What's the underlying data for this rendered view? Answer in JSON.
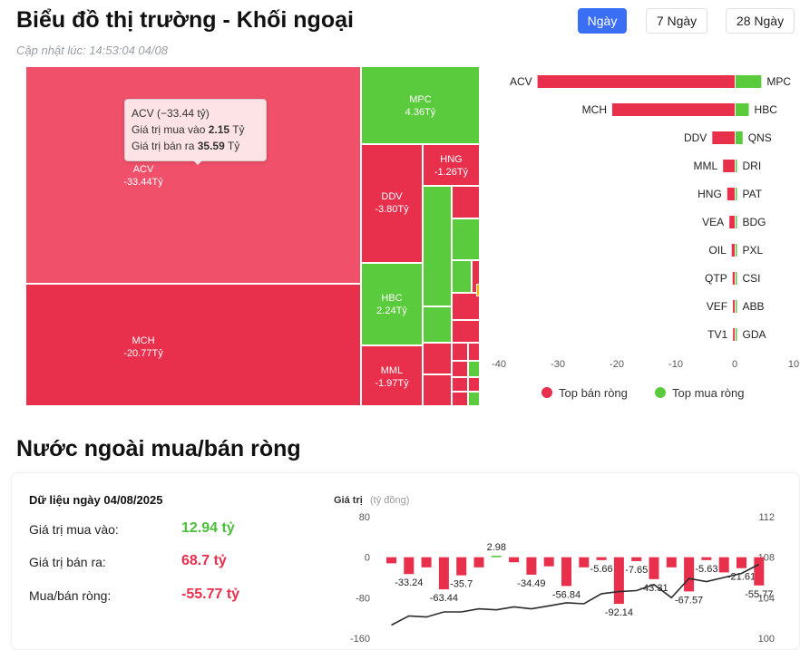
{
  "header": {
    "title": "Biểu đồ thị trường - Khối ngoại",
    "updated": "Cập nhật lúc: 14:53:04 04/08",
    "tabs": [
      {
        "label": "Ngày",
        "active": true
      },
      {
        "label": "7 Ngày",
        "active": false
      },
      {
        "label": "28 Ngày",
        "active": false
      }
    ]
  },
  "colors": {
    "sell": "#e8304d",
    "sell_light": "#f0506a",
    "buy": "#5bcb3e",
    "accent": "#3a6ff5"
  },
  "treemap": {
    "tiles": [
      {
        "name": "ACV",
        "value": "-33.44Tỷ",
        "side": "sell"
      },
      {
        "name": "MCH",
        "value": "-20.77Tỷ",
        "side": "sell"
      },
      {
        "name": "MPC",
        "value": "4.36Tỷ",
        "side": "buy"
      },
      {
        "name": "DDV",
        "value": "-3.80Tỷ",
        "side": "sell"
      },
      {
        "name": "HNG",
        "value": "-1.26Tỷ",
        "side": "sell"
      },
      {
        "name": "HBC",
        "value": "2.24Tỷ",
        "side": "buy"
      },
      {
        "name": "MML",
        "value": "-1.97Tỷ",
        "side": "sell"
      }
    ],
    "tooltip": {
      "title": "ACV (−33.44 tỷ)",
      "buy_label": "Giá trị mua vào",
      "buy_value": "2.15",
      "buy_unit": "Tỷ",
      "sell_label": "Giá trị bán ra",
      "sell_value": "35.59",
      "sell_unit": "Tỷ"
    }
  },
  "bar_chart": {
    "rows": [
      {
        "sell_code": "ACV",
        "sell": -33.44,
        "buy_code": "MPC",
        "buy": 4.36
      },
      {
        "sell_code": "MCH",
        "sell": -20.77,
        "buy_code": "HBC",
        "buy": 2.24
      },
      {
        "sell_code": "DDV",
        "sell": -3.8,
        "buy_code": "QNS",
        "buy": 1.2
      },
      {
        "sell_code": "MML",
        "sell": -1.97,
        "buy_code": "DRI",
        "buy": 0.2
      },
      {
        "sell_code": "HNG",
        "sell": -1.26,
        "buy_code": "PAT",
        "buy": 0.15
      },
      {
        "sell_code": "VEA",
        "sell": -0.9,
        "buy_code": "BDG",
        "buy": 0.1
      },
      {
        "sell_code": "OIL",
        "sell": -0.5,
        "buy_code": "PXL",
        "buy": 0.08
      },
      {
        "sell_code": "QTP",
        "sell": -0.35,
        "buy_code": "CSI",
        "buy": 0.06
      },
      {
        "sell_code": "VEF",
        "sell": -0.3,
        "buy_code": "ABB",
        "buy": 0.05
      },
      {
        "sell_code": "TV1",
        "sell": -0.28,
        "buy_code": "GDA",
        "buy": 0.05
      }
    ],
    "ticks": [
      -40,
      -30,
      -20,
      -10,
      0,
      10
    ],
    "legend_sell": "Top bán ròng",
    "legend_buy": "Top mua ròng"
  },
  "net_section": {
    "title": "Nước ngoài mua/bán ròng",
    "date_label": "Dữ liệu ngày 04/08/2025",
    "buy_label": "Giá trị mua vào:",
    "buy_value": "12.94 tỷ",
    "sell_label": "Giá trị bán ra:",
    "sell_value": "68.7 tỷ",
    "net_label": "Mua/bán ròng:",
    "net_value": "-55.77 tỷ"
  },
  "chart_data": {
    "type": "bar",
    "ylabel": "Giá trị",
    "ylabel_unit": "(tỷ đồng)",
    "ylim": [
      -160,
      80
    ],
    "yticks": [
      80,
      0,
      -80,
      -160
    ],
    "y2lim": [
      100,
      112
    ],
    "y2ticks": [
      112,
      108,
      104,
      100
    ],
    "series": [
      {
        "values": [
          -12,
          -33.24,
          -20,
          -63.44,
          -35.7,
          -20,
          2.98,
          -10,
          -34.49,
          -18,
          -56.84,
          -20,
          -5.66,
          -92.14,
          -7.65,
          -43.31,
          -20,
          -67.57,
          -5.63,
          -30,
          -21.61,
          -55.77
        ]
      },
      {
        "type": "line",
        "axis": "right",
        "values": [
          101.3,
          102.2,
          102.1,
          102.6,
          102.6,
          102.9,
          102.8,
          103.1,
          102.9,
          103.2,
          103.5,
          103.4,
          104.4,
          104.6,
          104.7,
          105.3,
          104.0,
          105.9,
          105.6,
          106.0,
          106.4,
          107.3
        ]
      }
    ],
    "labels": [
      "",
      "-33.24",
      "",
      "-63.44",
      "-35.7",
      "",
      "2.98",
      "",
      "-34.49",
      "",
      "-56.84",
      "",
      "-5.66",
      "-92.14",
      "-7.65",
      "-43.31",
      "",
      "-67.57",
      "-5.63",
      "",
      "-21.61",
      "-55.77"
    ]
  }
}
